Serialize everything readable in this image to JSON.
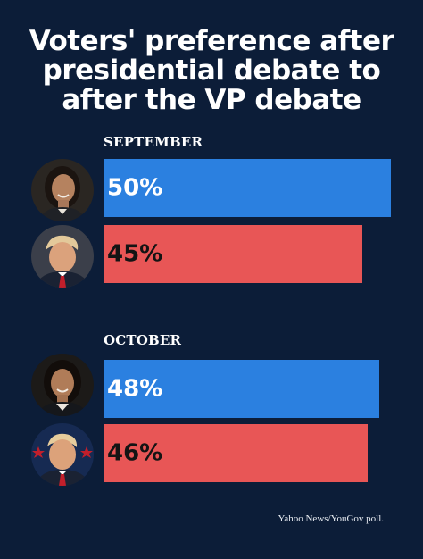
{
  "title_lines": [
    "Voters' preference after",
    "presidential debate to",
    "after the VP debate"
  ],
  "source": "Yahoo News/YouGov poll.",
  "colors": {
    "background": "#0c1d38",
    "blue": "#2b80e0",
    "red": "#e85656",
    "blue_text": "#ffffff",
    "red_text": "#141414"
  },
  "chart_data": {
    "type": "bar",
    "orientation": "horizontal",
    "unit": "%",
    "xlim": [
      0,
      54
    ],
    "groups": [
      {
        "label": "SEPTEMBER",
        "bars": [
          {
            "value": 50,
            "label": "50%",
            "color": "blue",
            "avatar": "harris-portrait-icon"
          },
          {
            "value": 45,
            "label": "45%",
            "color": "red",
            "avatar": "trump-portrait-icon"
          }
        ]
      },
      {
        "label": "OCTOBER",
        "bars": [
          {
            "value": 48,
            "label": "48%",
            "color": "blue",
            "avatar": "harris-portrait-icon"
          },
          {
            "value": 46,
            "label": "46%",
            "color": "red",
            "avatar": "trump-portrait-icon"
          }
        ]
      }
    ]
  }
}
